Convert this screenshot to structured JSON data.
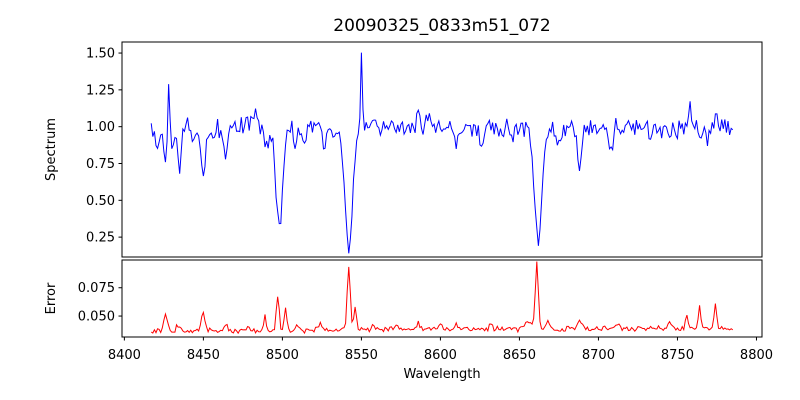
{
  "chart_data": {
    "type": "line",
    "title": "20090325_0833m51_072",
    "xlabel": "Wavelength",
    "x_start": 8417,
    "x_end": 8785,
    "x_step": 1,
    "xlim": [
      8398.5,
      8803.5
    ],
    "x_ticks": [
      8400,
      8450,
      8500,
      8550,
      8600,
      8650,
      8700,
      8750,
      8800
    ],
    "x_tick_labels": [
      "8400",
      "8450",
      "8500",
      "8550",
      "8600",
      "8650",
      "8700",
      "8750",
      "8800"
    ],
    "grid": false,
    "legend": "none",
    "noise_seed": 20090325,
    "background_color": "#ffffff",
    "axes_color": "#000000",
    "panels": [
      {
        "name": "spectrum",
        "ylabel": "Spectrum",
        "color": "#0000ff",
        "ylim": [
          0.115,
          1.575
        ],
        "y_tick_values": [
          0.25,
          0.5,
          0.75,
          1.0,
          1.25,
          1.5
        ],
        "y_tick_labels": [
          "0.25",
          "0.50",
          "0.75",
          "1.00",
          "1.25",
          "1.50"
        ],
        "baseline": 0.995,
        "noise_sigma": 0.033,
        "absorption_lines": [
          {
            "center": 8421,
            "depth": 0.12,
            "sigma": 1.2
          },
          {
            "center": 8426,
            "depth": 0.22,
            "sigma": 1.1
          },
          {
            "center": 8431,
            "depth": 0.18,
            "sigma": 0.9
          },
          {
            "center": 8435,
            "depth": 0.26,
            "sigma": 1.3
          },
          {
            "center": 8444,
            "depth": 0.08,
            "sigma": 1.0
          },
          {
            "center": 8450,
            "depth": 0.3,
            "sigma": 1.7
          },
          {
            "center": 8457,
            "depth": 0.08,
            "sigma": 1.0
          },
          {
            "center": 8464,
            "depth": 0.16,
            "sigma": 1.4
          },
          {
            "center": 8490,
            "depth": 0.1,
            "sigma": 1.2
          },
          {
            "center": 8498,
            "depth": 0.68,
            "sigma": 2.2
          },
          {
            "center": 8508,
            "depth": 0.15,
            "sigma": 1.1
          },
          {
            "center": 8514,
            "depth": 0.12,
            "sigma": 1.0
          },
          {
            "center": 8526,
            "depth": 0.11,
            "sigma": 1.0
          },
          {
            "center": 8533,
            "depth": 0.1,
            "sigma": 1.4
          },
          {
            "center": 8542,
            "depth": 0.82,
            "sigma": 2.5
          },
          {
            "center": 8610,
            "depth": 0.16,
            "sigma": 1.2
          },
          {
            "center": 8626,
            "depth": 0.17,
            "sigma": 1.2
          },
          {
            "center": 8637,
            "depth": 0.1,
            "sigma": 1.0
          },
          {
            "center": 8645,
            "depth": 0.12,
            "sigma": 1.1
          },
          {
            "center": 8662,
            "depth": 0.73,
            "sigma": 2.4
          },
          {
            "center": 8675,
            "depth": 0.1,
            "sigma": 1.0
          },
          {
            "center": 8688,
            "depth": 0.3,
            "sigma": 1.2
          },
          {
            "center": 8708,
            "depth": 0.13,
            "sigma": 1.4
          },
          {
            "center": 8733,
            "depth": 0.1,
            "sigma": 1.1
          },
          {
            "center": 8745,
            "depth": 0.1,
            "sigma": 1.0
          },
          {
            "center": 8769,
            "depth": 0.1,
            "sigma": 0.8
          }
        ],
        "emission_spikes": [
          {
            "center": 8428,
            "height": 0.29,
            "sigma": 0.6
          },
          {
            "center": 8483,
            "height": 0.09,
            "sigma": 1.2
          },
          {
            "center": 8522,
            "height": 0.06,
            "sigma": 1.0
          },
          {
            "center": 8550,
            "height": 0.53,
            "sigma": 0.6
          },
          {
            "center": 8557,
            "height": 0.08,
            "sigma": 0.9
          },
          {
            "center": 8586,
            "height": 0.17,
            "sigma": 0.8
          },
          {
            "center": 8592,
            "height": 0.11,
            "sigma": 0.8
          },
          {
            "center": 8758,
            "height": 0.14,
            "sigma": 1.0
          },
          {
            "center": 8774,
            "height": 0.1,
            "sigma": 0.7
          }
        ]
      },
      {
        "name": "error",
        "ylabel": "Error",
        "color": "#ff0000",
        "ylim": [
          0.0315,
          0.0995
        ],
        "y_tick_values": [
          0.05,
          0.075
        ],
        "y_tick_labels": [
          "0.050",
          "0.075"
        ],
        "baseline_start": 0.0365,
        "baseline_end": 0.0395,
        "noise_sigma": 0.0012,
        "peaks": [
          {
            "center": 8426,
            "height": 0.015,
            "sigma": 1.1
          },
          {
            "center": 8434,
            "height": 0.006,
            "sigma": 1.0
          },
          {
            "center": 8450,
            "height": 0.014,
            "sigma": 1.4
          },
          {
            "center": 8464,
            "height": 0.006,
            "sigma": 1.2
          },
          {
            "center": 8478,
            "height": 0.004,
            "sigma": 1.2
          },
          {
            "center": 8489,
            "height": 0.014,
            "sigma": 0.7
          },
          {
            "center": 8497,
            "height": 0.031,
            "sigma": 0.9
          },
          {
            "center": 8502,
            "height": 0.021,
            "sigma": 0.8
          },
          {
            "center": 8510,
            "height": 0.005,
            "sigma": 1.4
          },
          {
            "center": 8524,
            "height": 0.006,
            "sigma": 1.1
          },
          {
            "center": 8542,
            "height": 0.056,
            "sigma": 1.0
          },
          {
            "center": 8546,
            "height": 0.019,
            "sigma": 0.9
          },
          {
            "center": 8558,
            "height": 0.005,
            "sigma": 1.1
          },
          {
            "center": 8572,
            "height": 0.005,
            "sigma": 1.0
          },
          {
            "center": 8586,
            "height": 0.006,
            "sigma": 1.1
          },
          {
            "center": 8600,
            "height": 0.005,
            "sigma": 1.1
          },
          {
            "center": 8610,
            "height": 0.005,
            "sigma": 1.0
          },
          {
            "center": 8632,
            "height": 0.004,
            "sigma": 1.0
          },
          {
            "center": 8655,
            "height": 0.007,
            "sigma": 2.2
          },
          {
            "center": 8661,
            "height": 0.059,
            "sigma": 0.95
          },
          {
            "center": 8668,
            "height": 0.008,
            "sigma": 1.2
          },
          {
            "center": 8688,
            "height": 0.008,
            "sigma": 1.2
          },
          {
            "center": 8712,
            "height": 0.004,
            "sigma": 1.2
          },
          {
            "center": 8745,
            "height": 0.005,
            "sigma": 1.3
          },
          {
            "center": 8756,
            "height": 0.009,
            "sigma": 0.9
          },
          {
            "center": 8764,
            "height": 0.021,
            "sigma": 0.8
          },
          {
            "center": 8774,
            "height": 0.022,
            "sigma": 0.8
          }
        ]
      }
    ]
  }
}
